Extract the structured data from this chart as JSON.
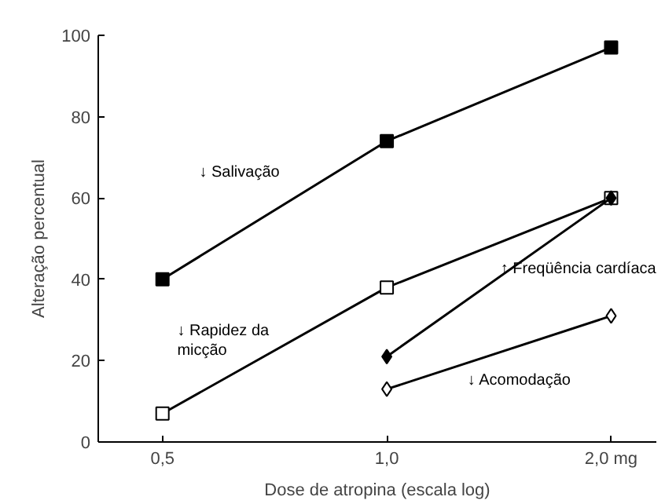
{
  "chart_data": {
    "type": "line",
    "xlabel": "Dose de atropina (escala log)",
    "ylabel": "Alteração percentual",
    "log": "x",
    "xlim": [
      0.41,
      2.3
    ],
    "xticks": [
      {
        "value": 0.5,
        "label": "0,5"
      },
      {
        "value": 1.0,
        "label": "1,0"
      },
      {
        "value": 2.0,
        "label": "2,0 mg"
      }
    ],
    "ylim": [
      0,
      100
    ],
    "yticks": [
      0,
      20,
      40,
      60,
      80,
      100
    ],
    "grid": false,
    "series": [
      {
        "name": "↓ Salivação",
        "x": [
          0.5,
          1.0,
          2.0
        ],
        "values": [
          40,
          74,
          97
        ],
        "color": "#000000",
        "marker": "square"
      },
      {
        "name": "↓ Rapidez da\nmicção",
        "x": [
          0.5,
          1.0,
          2.0
        ],
        "values": [
          7,
          38,
          60
        ],
        "color": "#000000",
        "marker": "square_open"
      },
      {
        "name": "↑ Freqüência cardíaca",
        "x": [
          1.0,
          2.0
        ],
        "values": [
          21,
          60
        ],
        "color": "#000000",
        "marker": "diamond"
      },
      {
        "name": "↓ Acomodação",
        "x": [
          1.0,
          2.0
        ],
        "values": [
          13,
          31
        ],
        "color": "#000000",
        "marker": "diamond_open"
      }
    ]
  }
}
